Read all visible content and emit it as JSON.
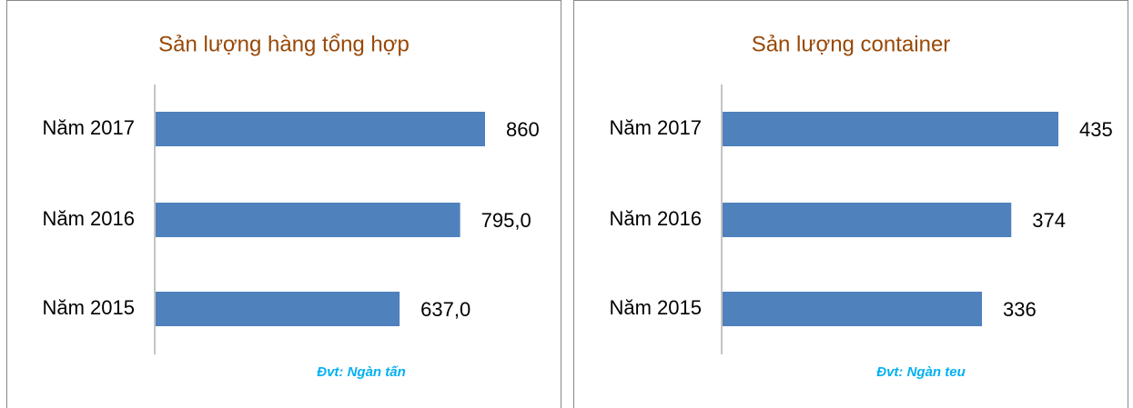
{
  "chart_data": [
    {
      "type": "bar",
      "orientation": "horizontal",
      "title": "Sản lượng hàng tổng hợp",
      "categories": [
        "Năm 2017",
        "Năm 2016",
        "Năm 2015"
      ],
      "values": [
        860,
        795,
        637
      ],
      "value_labels": [
        "860",
        "795,0",
        "637,0"
      ],
      "color": "#4f81bd",
      "annotation": "Đvt: Ngàn tấn"
    },
    {
      "type": "bar",
      "orientation": "horizontal",
      "title": "Sản lượng container",
      "categories": [
        "Năm 2017",
        "Năm 2016",
        "Năm 2015"
      ],
      "values": [
        435,
        374,
        336
      ],
      "color": "#4f81bd",
      "annotation": "Đvt: Ngàn teu"
    }
  ]
}
